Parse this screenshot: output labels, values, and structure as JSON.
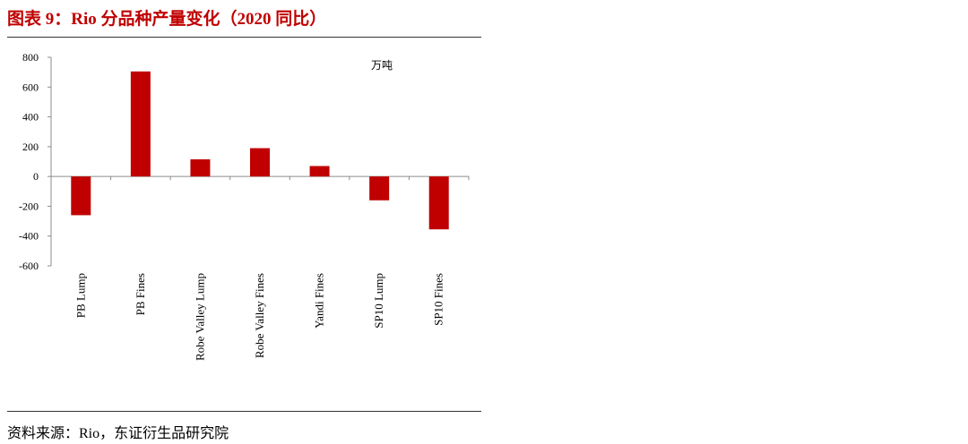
{
  "header": {
    "title": "图表 9：Rio 分品种产量变化（2020 同比）"
  },
  "footer": {
    "source": "资料来源：Rio，东证衍生品研究院"
  },
  "colors": {
    "title": "#c00000",
    "bar": "#c00000",
    "axis": "#8c8c8c"
  },
  "chart_data": {
    "type": "bar",
    "title": "",
    "unit_label": "万吨",
    "xlabel": "",
    "ylabel": "",
    "categories": [
      "PB  Lump",
      "PB Fines",
      "Robe Valley Lump",
      "Robe Valley Fines",
      "Yandi Fines",
      "SP10 Lump",
      "SP10 Fines"
    ],
    "values": [
      -260,
      705,
      115,
      190,
      70,
      -160,
      -355
    ],
    "ylim": [
      -600,
      800
    ],
    "yticks": [
      800,
      600,
      400,
      200,
      0,
      -200,
      -400,
      -600
    ],
    "grid": false,
    "legend": "none"
  }
}
